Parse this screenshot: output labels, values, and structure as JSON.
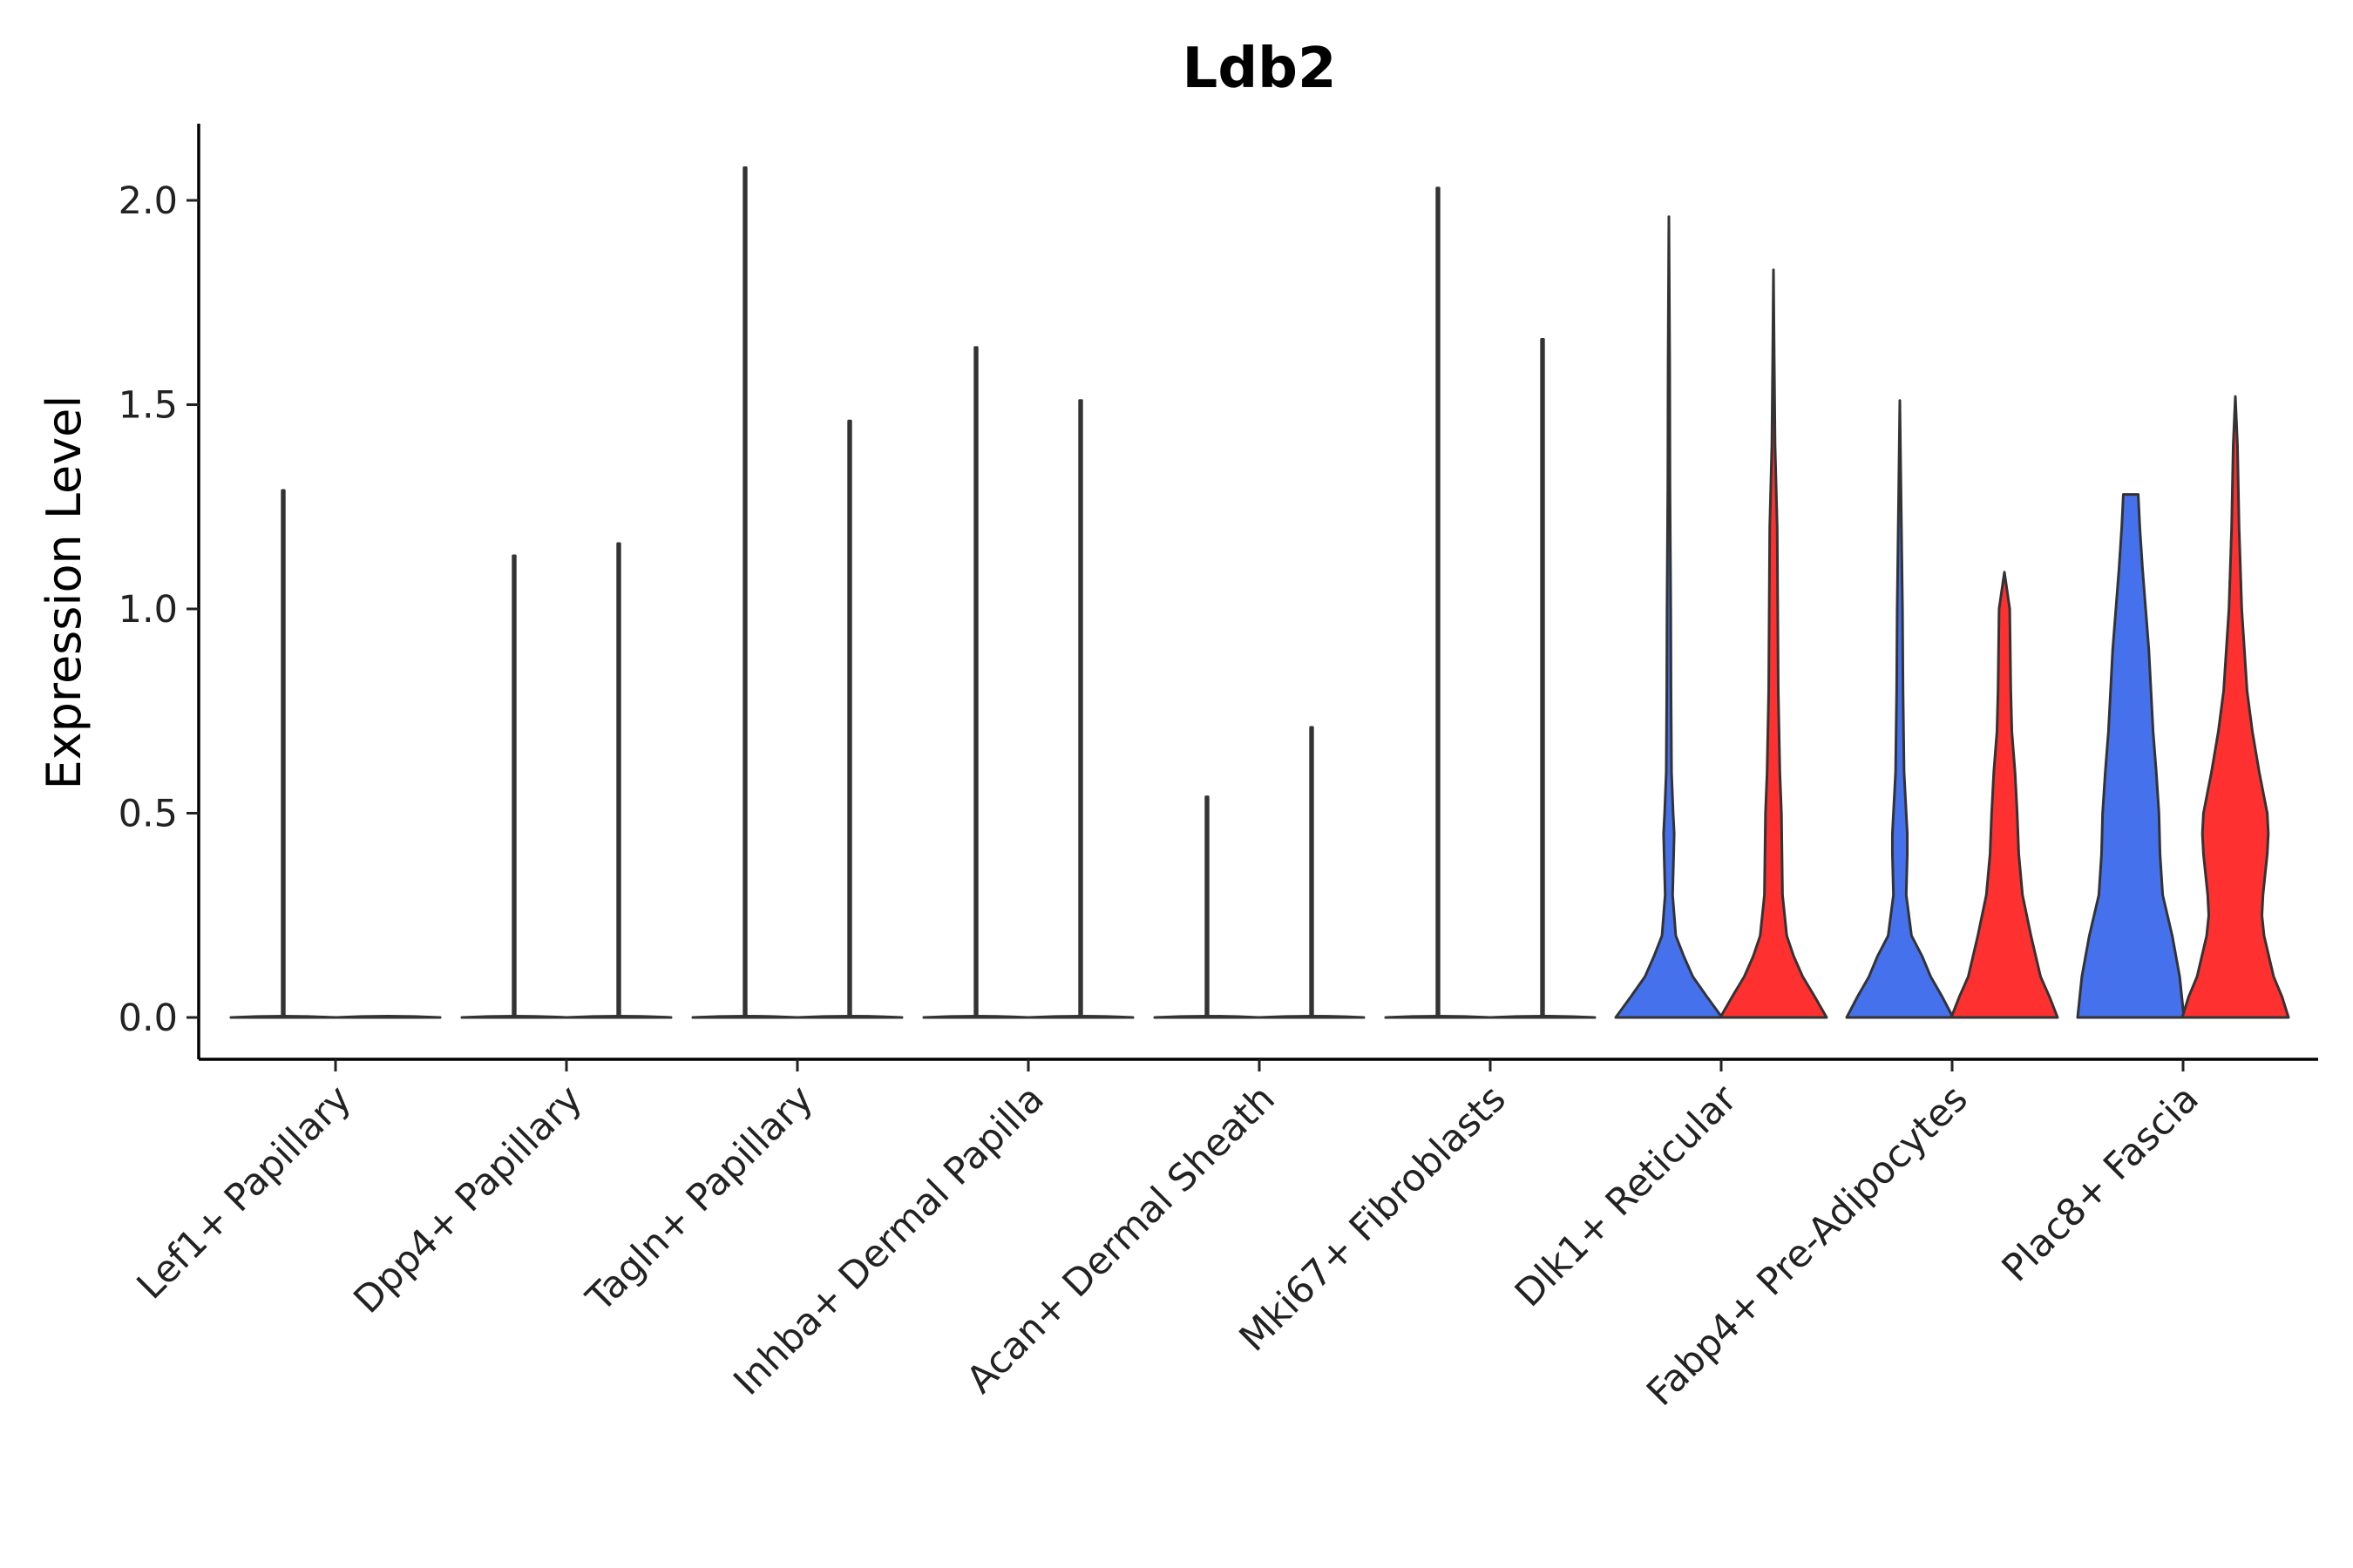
{
  "chart_data": {
    "type": "violin",
    "title": "Ldb2",
    "xlabel": "",
    "ylabel": "Expression Level",
    "ylim": [
      -0.1,
      2.2
    ],
    "yticks": [
      0.0,
      0.5,
      1.0,
      1.5,
      2.0
    ],
    "ytick_labels": [
      "0.0",
      "0.5",
      "1.0",
      "1.5",
      "2.0"
    ],
    "grid": false,
    "legend": "none",
    "split": true,
    "colors": {
      "left": "#4571EC",
      "right": "#FF3030",
      "outline": "#333333"
    },
    "categories": [
      "Lef1+ Papillary",
      "Dpp4+ Papillary",
      "Tagln+ Papillary",
      "Inhba+ Dermal Papilla",
      "Acan+ Dermal Sheath",
      "Mki67+ Fibroblasts",
      "Dlk1+ Reticular",
      "Fabp4+ Pre-Adipocytes",
      "Plac8+ Fascia"
    ],
    "violins": [
      {
        "category": 0,
        "side": "left",
        "max": 1.29,
        "filled": false
      },
      {
        "category": 0,
        "side": "right",
        "max": 0.0,
        "filled": false
      },
      {
        "category": 1,
        "side": "left",
        "max": 1.13,
        "filled": false
      },
      {
        "category": 1,
        "side": "right",
        "max": 1.16,
        "filled": false
      },
      {
        "category": 2,
        "side": "left",
        "max": 2.08,
        "filled": false
      },
      {
        "category": 2,
        "side": "right",
        "max": 1.46,
        "filled": false
      },
      {
        "category": 3,
        "side": "left",
        "max": 1.64,
        "filled": false
      },
      {
        "category": 3,
        "side": "right",
        "max": 1.51,
        "filled": false
      },
      {
        "category": 4,
        "side": "left",
        "max": 0.54,
        "filled": false
      },
      {
        "category": 4,
        "side": "right",
        "max": 0.71,
        "filled": false
      },
      {
        "category": 5,
        "side": "left",
        "max": 2.03,
        "filled": false
      },
      {
        "category": 5,
        "side": "right",
        "max": 1.66,
        "filled": false
      },
      {
        "category": 6,
        "side": "left",
        "max": 1.96,
        "filled": true,
        "profile": [
          [
            0.0,
            1.0
          ],
          [
            0.05,
            0.72
          ],
          [
            0.1,
            0.45
          ],
          [
            0.15,
            0.28
          ],
          [
            0.2,
            0.13
          ],
          [
            0.3,
            0.07
          ],
          [
            0.4,
            0.09
          ],
          [
            0.45,
            0.1
          ],
          [
            0.5,
            0.08
          ],
          [
            0.6,
            0.05
          ],
          [
            0.8,
            0.04
          ],
          [
            1.0,
            0.035
          ],
          [
            1.3,
            0.02
          ],
          [
            1.6,
            0.015
          ],
          [
            1.96,
            0.0
          ]
        ]
      },
      {
        "category": 6,
        "side": "right",
        "max": 1.83,
        "filled": true,
        "profile": [
          [
            0.0,
            1.0
          ],
          [
            0.05,
            0.78
          ],
          [
            0.1,
            0.55
          ],
          [
            0.15,
            0.38
          ],
          [
            0.2,
            0.25
          ],
          [
            0.3,
            0.17
          ],
          [
            0.4,
            0.16
          ],
          [
            0.5,
            0.15
          ],
          [
            0.6,
            0.12
          ],
          [
            0.8,
            0.09
          ],
          [
            1.0,
            0.08
          ],
          [
            1.2,
            0.07
          ],
          [
            1.4,
            0.03
          ],
          [
            1.6,
            0.015
          ],
          [
            1.83,
            0.0
          ]
        ]
      },
      {
        "category": 7,
        "side": "left",
        "max": 1.51,
        "filled": true,
        "profile": [
          [
            0.0,
            1.0
          ],
          [
            0.05,
            0.8
          ],
          [
            0.1,
            0.58
          ],
          [
            0.15,
            0.42
          ],
          [
            0.2,
            0.22
          ],
          [
            0.3,
            0.12
          ],
          [
            0.4,
            0.14
          ],
          [
            0.45,
            0.14
          ],
          [
            0.5,
            0.12
          ],
          [
            0.6,
            0.08
          ],
          [
            0.8,
            0.06
          ],
          [
            1.0,
            0.05
          ],
          [
            1.2,
            0.03
          ],
          [
            1.51,
            0.0
          ]
        ]
      },
      {
        "category": 7,
        "side": "right",
        "max": 1.09,
        "filled": true,
        "profile": [
          [
            0.0,
            1.0
          ],
          [
            0.05,
            0.85
          ],
          [
            0.1,
            0.68
          ],
          [
            0.2,
            0.5
          ],
          [
            0.3,
            0.34
          ],
          [
            0.4,
            0.27
          ],
          [
            0.5,
            0.24
          ],
          [
            0.6,
            0.2
          ],
          [
            0.7,
            0.14
          ],
          [
            0.8,
            0.12
          ],
          [
            1.0,
            0.1
          ],
          [
            1.09,
            0.0
          ]
        ]
      },
      {
        "category": 8,
        "side": "left",
        "max": 1.28,
        "filled": true,
        "profile": [
          [
            0.0,
            1.0
          ],
          [
            0.1,
            0.92
          ],
          [
            0.2,
            0.78
          ],
          [
            0.3,
            0.6
          ],
          [
            0.4,
            0.55
          ],
          [
            0.5,
            0.53
          ],
          [
            0.6,
            0.48
          ],
          [
            0.7,
            0.42
          ],
          [
            0.8,
            0.38
          ],
          [
            0.9,
            0.34
          ],
          [
            1.0,
            0.28
          ],
          [
            1.1,
            0.22
          ],
          [
            1.2,
            0.17
          ],
          [
            1.28,
            0.14
          ]
        ]
      },
      {
        "category": 8,
        "side": "right",
        "max": 1.52,
        "filled": true,
        "profile": [
          [
            0.0,
            1.0
          ],
          [
            0.05,
            0.88
          ],
          [
            0.1,
            0.72
          ],
          [
            0.2,
            0.54
          ],
          [
            0.25,
            0.5
          ],
          [
            0.3,
            0.52
          ],
          [
            0.4,
            0.6
          ],
          [
            0.45,
            0.62
          ],
          [
            0.5,
            0.6
          ],
          [
            0.6,
            0.45
          ],
          [
            0.7,
            0.32
          ],
          [
            0.8,
            0.22
          ],
          [
            1.0,
            0.12
          ],
          [
            1.2,
            0.07
          ],
          [
            1.4,
            0.04
          ],
          [
            1.52,
            0.0
          ]
        ]
      }
    ]
  }
}
